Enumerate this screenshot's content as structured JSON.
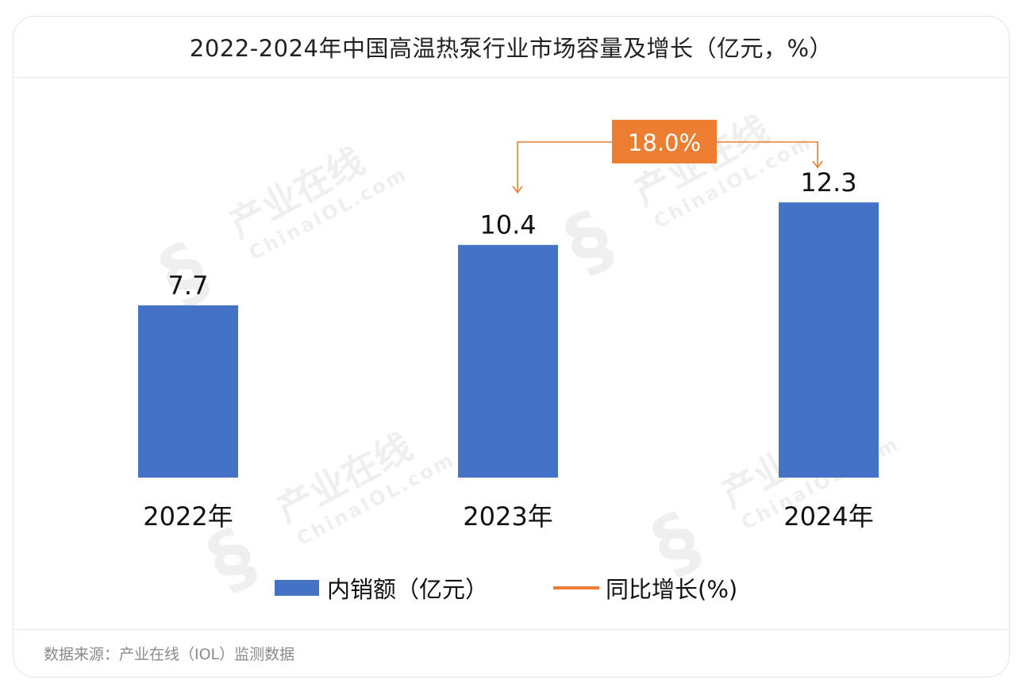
{
  "title": "2022-2024年中国高温热泵行业市场容量及增长（亿元，%）",
  "source": "数据来源：产业在线（IOL）监测数据",
  "watermark": {
    "cn": "产业在线",
    "en": "ChinaIOL.com"
  },
  "colors": {
    "bar": "#4472c4",
    "growth": "#ed7d31",
    "text": "#111111"
  },
  "chart_data": {
    "type": "bar",
    "title": "2022-2024年中国高温热泵行业市场容量及增长（亿元，%）",
    "categories": [
      "2022年",
      "2023年",
      "2024年"
    ],
    "series": [
      {
        "name": "内销额（亿元）",
        "values": [
          7.7,
          10.4,
          12.3
        ]
      }
    ],
    "growth_annotation": {
      "name": "同比增长(%)",
      "from": "2023年",
      "to": "2024年",
      "label": "18.0%",
      "value": 18.0
    },
    "ylim": [
      0,
      15
    ],
    "grid": false,
    "legend": "bottom"
  },
  "legend": {
    "bar_label": "内销额（亿元）",
    "line_label": "同比增长(%)"
  }
}
